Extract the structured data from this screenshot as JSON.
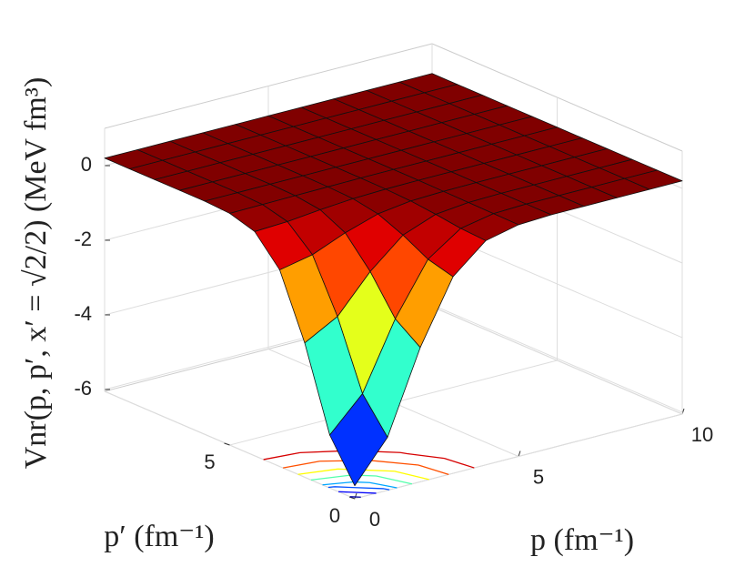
{
  "chart_data": {
    "type": "surface",
    "xlabel": "p (fm⁻¹)",
    "ylabel": "p′ (fm⁻¹)",
    "zlabel": "Vnr(p, p′, x′ = √2/2)  (MeV fm³)",
    "x": [
      0,
      1,
      2,
      3,
      4,
      5,
      6,
      7,
      8,
      9,
      10
    ],
    "y": [
      0,
      1,
      2,
      3,
      4,
      5,
      6,
      7,
      8,
      9,
      10
    ],
    "z": [
      [
        -5.7,
        -4.63,
        -2.45,
        -0.78,
        -0.04,
        0.16,
        0.2,
        0.2,
        0.2,
        0.2,
        0.2
      ],
      [
        -4.63,
        -3.75,
        -1.97,
        -0.6,
        0.0,
        0.17,
        0.2,
        0.2,
        0.2,
        0.2,
        0.2
      ],
      [
        -2.45,
        -1.97,
        -0.99,
        -0.24,
        0.09,
        0.18,
        0.2,
        0.2,
        0.2,
        0.2,
        0.2
      ],
      [
        -0.78,
        -0.6,
        -0.24,
        0.04,
        0.16,
        0.19,
        0.2,
        0.2,
        0.2,
        0.2,
        0.2
      ],
      [
        -0.04,
        0.0,
        0.09,
        0.16,
        0.19,
        0.2,
        0.2,
        0.2,
        0.2,
        0.2,
        0.2
      ],
      [
        0.16,
        0.17,
        0.18,
        0.19,
        0.2,
        0.2,
        0.2,
        0.2,
        0.2,
        0.2,
        0.2
      ],
      [
        0.2,
        0.2,
        0.2,
        0.2,
        0.2,
        0.2,
        0.2,
        0.2,
        0.2,
        0.2,
        0.2
      ],
      [
        0.2,
        0.2,
        0.2,
        0.2,
        0.2,
        0.2,
        0.2,
        0.2,
        0.2,
        0.2,
        0.2
      ],
      [
        0.2,
        0.2,
        0.2,
        0.2,
        0.2,
        0.2,
        0.2,
        0.2,
        0.2,
        0.2,
        0.2
      ],
      [
        0.2,
        0.2,
        0.2,
        0.2,
        0.2,
        0.2,
        0.2,
        0.2,
        0.2,
        0.2,
        0.2
      ],
      [
        0.2,
        0.2,
        0.2,
        0.2,
        0.2,
        0.2,
        0.2,
        0.2,
        0.2,
        0.2,
        0.2
      ]
    ],
    "xlim": [
      0,
      10
    ],
    "ylim": [
      0,
      10
    ],
    "zlim": [
      -6.05,
      1
    ],
    "xticks": [
      0,
      5,
      10
    ],
    "yticks": [
      0,
      5
    ],
    "zticks": [
      -6,
      -4,
      -2,
      0
    ],
    "contour_levels": [
      -5.5,
      -5,
      -4.5,
      -4,
      -3,
      -2,
      -1,
      -0.3
    ],
    "colormap": "jet",
    "grid": true
  }
}
